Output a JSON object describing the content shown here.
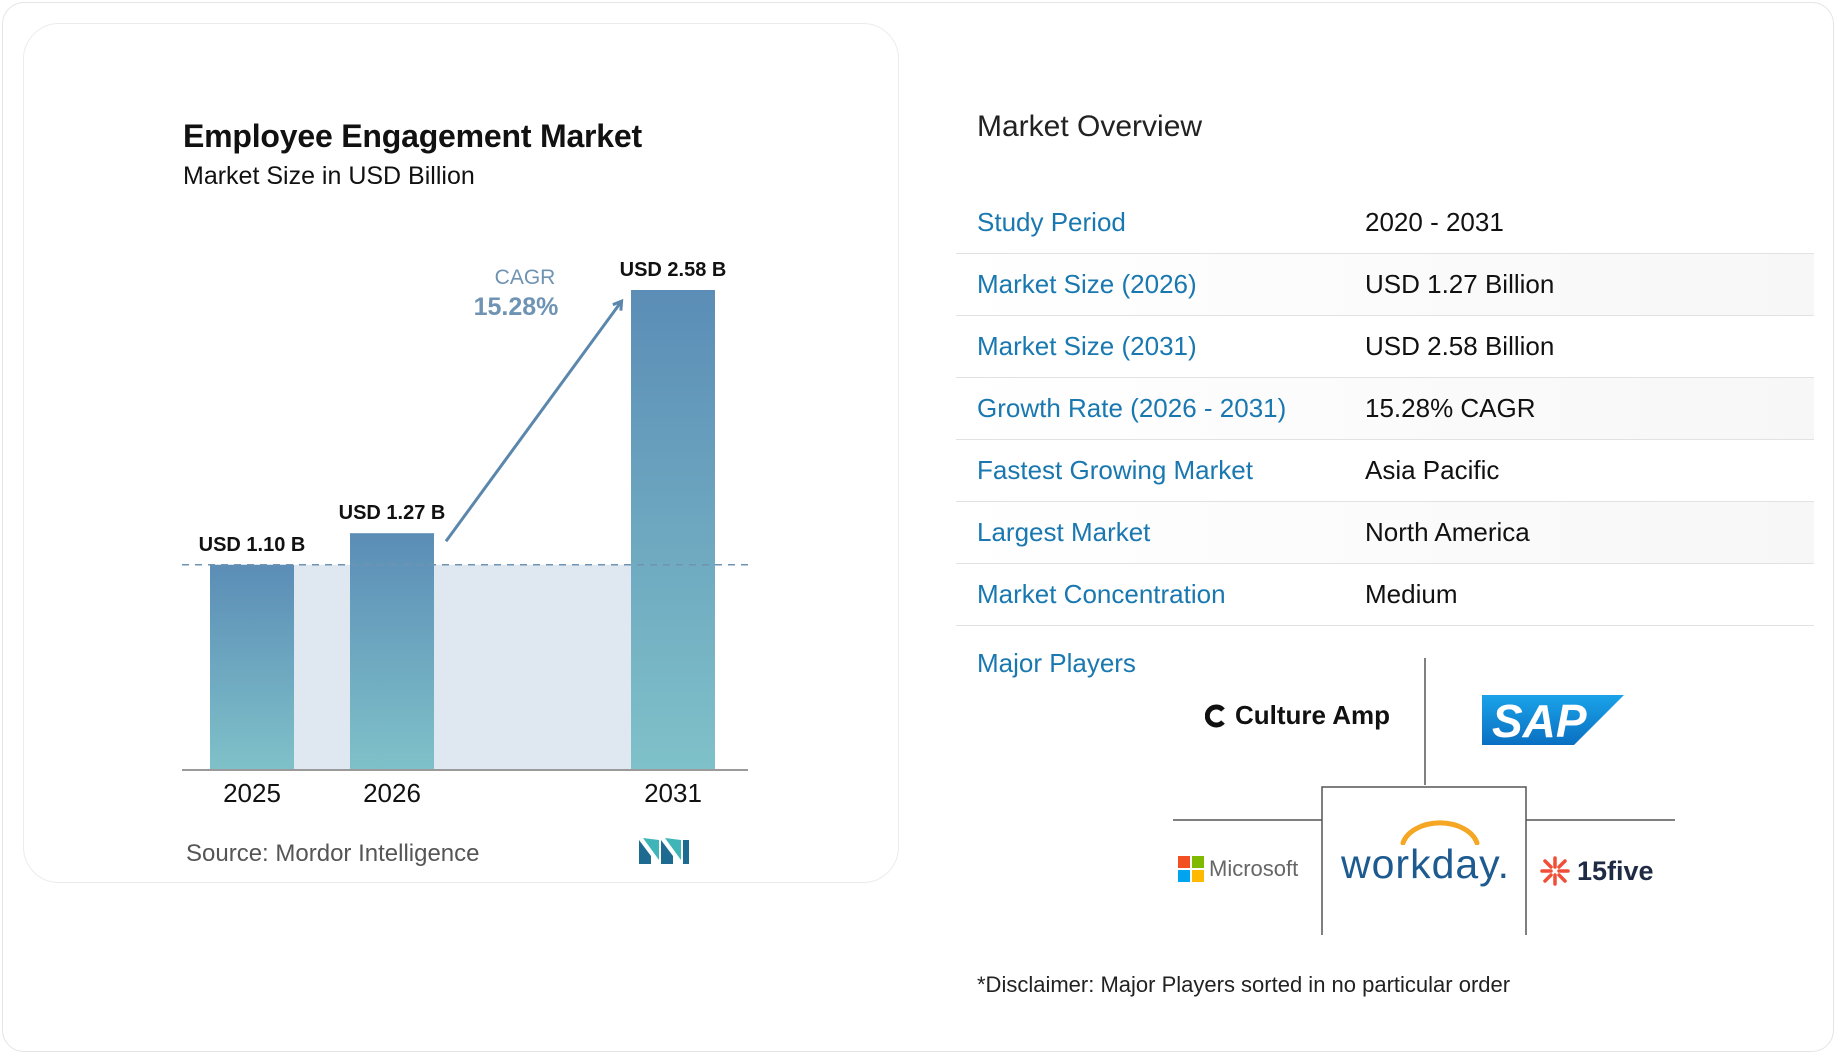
{
  "chart_data": {
    "type": "bar",
    "title": "Employee Engagement Market",
    "subtitle": "Market Size in USD Billion",
    "categories": [
      "2025",
      "2026",
      "2031"
    ],
    "values": [
      1.1,
      1.27,
      2.58
    ],
    "data_labels": [
      "USD 1.10 B",
      "USD 1.27 B",
      "USD 2.58 B"
    ],
    "cagr_label": "CAGR",
    "cagr_value": "15.28%",
    "baseline_reference": 1.1,
    "ylim": [
      0,
      2.58
    ],
    "grid": false,
    "colors": {
      "bar_top": "#5b8db6",
      "bar_bottom": "#7dc0c8",
      "arrow": "#5a87ab",
      "band": "#dfe8f0",
      "cagr_text": "#6f93b3"
    }
  },
  "source": {
    "label": "Source:",
    "name": "Mordor Intelligence"
  },
  "overview": {
    "title": "Market Overview",
    "rows": [
      {
        "label": "Study Period",
        "value": "2020 - 2031"
      },
      {
        "label": "Market Size (2026)",
        "value": "USD 1.27 Billion"
      },
      {
        "label": "Market Size (2031)",
        "value": "USD 2.58 Billion"
      },
      {
        "label": "Growth Rate (2026 - 2031)",
        "value": "15.28% CAGR"
      },
      {
        "label": "Fastest Growing Market",
        "value": "Asia Pacific"
      },
      {
        "label": "Largest Market",
        "value": "North America"
      },
      {
        "label": "Market Concentration",
        "value": "Medium"
      }
    ]
  },
  "major_players": {
    "label": "Major Players",
    "logos": {
      "culture_amp": "Culture Amp",
      "sap": "SAP",
      "microsoft": "Microsoft",
      "workday": "workday.",
      "fifteen_five": "15five"
    }
  },
  "disclaimer": "*Disclaimer: Major Players sorted in no particular order",
  "accent_color": "#1a78b0"
}
